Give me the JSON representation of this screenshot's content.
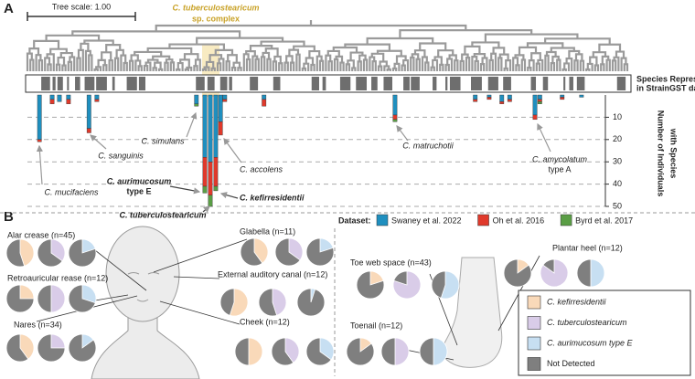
{
  "panels": [
    "A",
    "B"
  ],
  "tree_scale": "Tree scale: 1.00",
  "complex_label": [
    "C. tuberculostearicum",
    "sp. complex"
  ],
  "strip_label": [
    "Species Represented",
    "in StrainGST database"
  ],
  "chart_data": [
    {
      "type": "bar",
      "stacked": true,
      "inverted": true,
      "ylabel": [
        "Number of Individuals",
        "with Species"
      ],
      "legend_title": "Dataset:",
      "x": [
        2.3,
        4.4,
        5.6,
        7.1,
        10.5,
        11.8,
        28.3,
        29.7,
        30.6,
        31.5,
        32.3,
        33.0,
        39.5,
        61.2,
        74.5,
        76.8,
        78.9,
        80.2,
        84.4,
        85.2,
        88.9,
        92.1
      ],
      "xlim": [
        0,
        100
      ],
      "series": [
        {
          "name": "Swaney et al. 2022",
          "color": "#1f8fbf",
          "values": [
            20,
            2,
            3,
            2,
            15,
            2,
            4,
            28,
            30,
            28,
            12,
            2,
            2,
            9,
            2,
            1,
            3,
            2,
            9,
            2,
            1,
            1
          ]
        },
        {
          "name": "Oh et al. 2016",
          "color": "#e0392b",
          "values": [
            1,
            2,
            0,
            2,
            2,
            1,
            0,
            13,
            15,
            13,
            6,
            1,
            3,
            2,
            1,
            1,
            1,
            1,
            2,
            1,
            1,
            0
          ]
        },
        {
          "name": "Byrd et al. 2017",
          "color": "#5a9e45",
          "values": [
            0,
            0,
            0,
            0,
            0,
            0,
            1,
            3,
            5,
            2,
            0,
            0,
            0,
            1,
            0,
            0,
            0,
            0,
            0,
            1,
            0,
            0
          ]
        }
      ],
      "ylim": [
        0,
        50
      ],
      "yticks": [
        10,
        20,
        30,
        40,
        50
      ],
      "grid": true,
      "annotations": [
        {
          "text": [
            "C. mucifaciens"
          ],
          "color": "#888888"
        },
        {
          "text": [
            "C. sanguinis"
          ],
          "color": "#888888"
        },
        {
          "text": [
            "C. simulans"
          ],
          "color": "#888888"
        },
        {
          "text": [
            "C. accolens"
          ],
          "color": "#888888"
        },
        {
          "text": [
            "C. matruchotii"
          ],
          "color": "#888888"
        },
        {
          "text": [
            "C. amycolatum",
            "type A"
          ],
          "color": "#888888"
        },
        {
          "text": [
            "C. aurimucosum",
            "type E"
          ],
          "color": "#c9a227"
        },
        {
          "text": [
            "C. kefirresidentii"
          ],
          "color": "#c9a227"
        },
        {
          "text": [
            "C. tuberculostearicum"
          ],
          "color": "#c9a227"
        }
      ]
    },
    {
      "type": "pie",
      "series": [
        {
          "name": "C. kefirresidentii",
          "color": "#f9d9b9"
        },
        {
          "name": "C. tuberculostearicum",
          "color": "#d9cce8"
        },
        {
          "name": "C. aurimucosum type E",
          "color": "#c7dff2"
        }
      ],
      "remainder": {
        "name": "Not Detected",
        "color": "#7f7f7f"
      },
      "sites": [
        {
          "label": "Alar crease (n=45)",
          "values": [
            45,
            35,
            20
          ]
        },
        {
          "label": "Retroauricular rease (n=12)",
          "values": [
            25,
            50,
            30
          ]
        },
        {
          "label": "Nares (n=34)",
          "values": [
            40,
            25,
            15
          ]
        },
        {
          "label": "Glabella (n=11)",
          "values": [
            40,
            35,
            20
          ]
        },
        {
          "label": "External auditory canal (n=12)",
          "values": [
            55,
            45,
            5
          ]
        },
        {
          "label": "Cheek (n=12)",
          "values": [
            50,
            40,
            35
          ]
        },
        {
          "label": "Toe web space (n=43)",
          "values": [
            20,
            80,
            55
          ]
        },
        {
          "label": "Toenail (n=12)",
          "values": [
            15,
            50,
            50
          ]
        },
        {
          "label": "Plantar heel (n=12)",
          "values": [
            15,
            85,
            50
          ]
        }
      ]
    }
  ]
}
